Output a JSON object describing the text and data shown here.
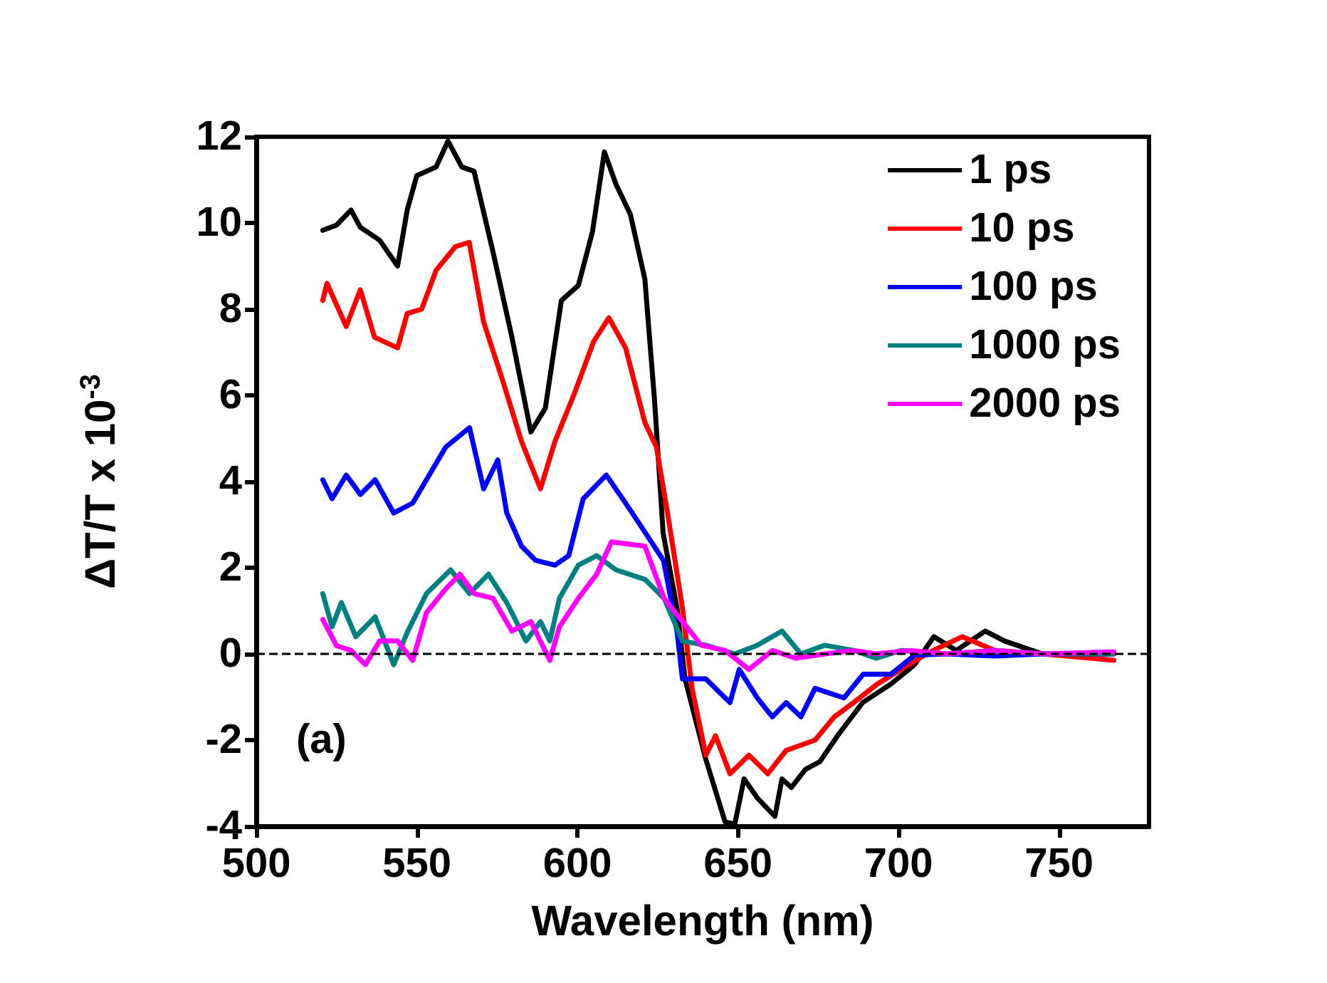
{
  "chart_data": {
    "type": "line",
    "xlabel": "Wavelength (nm)",
    "ylabel": "ΔT/T x 10$^{-3}$",
    "annotations": [
      "(a)"
    ],
    "xlim": [
      500,
      778
    ],
    "xticks": [
      500,
      550,
      600,
      650,
      700,
      750
    ],
    "ylim": [
      -4,
      12
    ],
    "yticks": [
      -4,
      -2,
      0,
      2,
      4,
      6,
      8,
      10,
      12
    ],
    "grid": false,
    "legend": "top right",
    "marker": "none",
    "ref_lines": [
      {
        "axis": "y",
        "value": 0,
        "label": null,
        "color": "#000000",
        "line_style": "dashed"
      }
    ],
    "series": [
      {
        "name": "1 ps",
        "color": "#000000",
        "x": [
          520.7,
          525,
          529.5,
          532.4,
          538.4,
          544,
          547,
          550,
          556,
          559.7,
          564,
          567.8,
          573.8,
          579.6,
          585.5,
          590,
          595,
          600.3,
          604.7,
          608.4,
          612,
          616.5,
          621,
          624,
          626.7,
          631,
          633.5,
          640,
          646,
          649,
          651.9,
          656,
          661.5,
          663.7,
          666.6,
          671,
          675.5,
          681,
          688.8,
          697.6,
          705,
          711,
          718,
          727,
          733,
          744.8,
          756.6,
          767
        ],
        "values": [
          9.83,
          9.95,
          10.3,
          9.9,
          9.6,
          9.0,
          10.3,
          11.1,
          11.3,
          11.9,
          11.3,
          11.2,
          9.3,
          7.35,
          5.15,
          5.7,
          8.2,
          8.55,
          9.8,
          11.65,
          10.9,
          10.2,
          8.7,
          5.9,
          2.8,
          1.07,
          -0.58,
          -2.45,
          -3.9,
          -3.95,
          -2.9,
          -3.34,
          -3.77,
          -2.9,
          -3.1,
          -2.68,
          -2.5,
          -1.9,
          -1.13,
          -0.7,
          -0.25,
          0.4,
          0.08,
          0.53,
          0.3,
          0,
          0,
          0
        ]
      },
      {
        "name": "10 ps",
        "color": "#ff0000",
        "x": [
          520.7,
          522,
          528,
          532.4,
          536.8,
          544,
          547,
          551.5,
          556,
          562,
          566.3,
          570.8,
          576.7,
          582.6,
          588.5,
          593,
          599,
          605,
          609.8,
          615,
          621,
          624.6,
          628,
          632.7,
          635.7,
          640,
          643,
          647.5,
          653.4,
          659.3,
          665,
          674,
          680,
          686,
          693.4,
          700.8,
          709.6,
          719.8,
          730,
          745,
          760,
          767
        ],
        "values": [
          8.2,
          8.6,
          7.6,
          8.45,
          7.35,
          7.1,
          7.9,
          8.0,
          8.9,
          9.45,
          9.55,
          7.7,
          6.35,
          4.93,
          3.83,
          4.93,
          6.03,
          7.24,
          7.8,
          7.1,
          5.37,
          4.8,
          3.3,
          1.07,
          -0.8,
          -2.35,
          -1.9,
          -2.78,
          -2.35,
          -2.78,
          -2.24,
          -2.0,
          -1.46,
          -1.13,
          -0.7,
          -0.36,
          0.04,
          0.4,
          0.08,
          0,
          -0.1,
          -0.15
        ]
      },
      {
        "name": "100 ps",
        "color": "#0000ff",
        "x": [
          520.7,
          523.6,
          528,
          532.4,
          537,
          542.8,
          548.7,
          553,
          559,
          566.4,
          570.8,
          575.2,
          578,
          582.6,
          587,
          593,
          597.3,
          601.8,
          609,
          615,
          620,
          626.8,
          631,
          632.7,
          640,
          647.5,
          650.4,
          656,
          660.7,
          665,
          669.6,
          674,
          683,
          689,
          697.6,
          705,
          715,
          730,
          745,
          767
        ],
        "values": [
          4.04,
          3.6,
          4.15,
          3.7,
          4.04,
          3.27,
          3.5,
          4.04,
          4.8,
          5.25,
          3.83,
          4.5,
          3.27,
          2.5,
          2.17,
          2.06,
          2.28,
          3.6,
          4.15,
          3.5,
          2.94,
          2.17,
          0.53,
          -0.58,
          -0.58,
          -1.13,
          -0.36,
          -1.02,
          -1.46,
          -1.13,
          -1.46,
          -0.8,
          -1.02,
          -0.47,
          -0.47,
          -0.03,
          0,
          -0.05,
          0,
          0
        ]
      },
      {
        "name": "1000 ps",
        "color": "#008080",
        "x": [
          520.7,
          523.6,
          526.5,
          531,
          537,
          542.8,
          547.2,
          553,
          560.5,
          566.4,
          572.3,
          578,
          584,
          588.5,
          591.4,
          594.4,
          600.3,
          606,
          612,
          621,
          627,
          632.7,
          640,
          649,
          656,
          663.7,
          669.6,
          677,
          686,
          693,
          700.8,
          715,
          730,
          745,
          767
        ],
        "values": [
          1.4,
          0.63,
          1.19,
          0.4,
          0.86,
          -0.25,
          0.53,
          1.4,
          1.95,
          1.4,
          1.85,
          1.19,
          0.3,
          0.75,
          0.3,
          1.29,
          2.06,
          2.28,
          1.95,
          1.73,
          1.29,
          0.3,
          0.2,
          0,
          0.2,
          0.53,
          0,
          0.2,
          0.08,
          -0.1,
          0.08,
          0,
          0.08,
          0,
          0
        ]
      },
      {
        "name": "2000 ps",
        "color": "#ff00ff",
        "x": [
          520.7,
          525,
          529.5,
          534,
          538.4,
          544,
          548.7,
          553,
          559,
          563.4,
          567.8,
          573.7,
          579.6,
          585.5,
          591.4,
          594.4,
          600.3,
          606,
          610.6,
          621,
          627,
          632.7,
          638.6,
          646,
          653.4,
          660.7,
          668,
          677,
          686,
          693,
          703.5,
          715,
          730,
          745,
          767
        ],
        "values": [
          0.8,
          0.19,
          0.08,
          -0.25,
          0.3,
          0.3,
          -0.15,
          0.96,
          1.51,
          1.85,
          1.4,
          1.29,
          0.53,
          0.75,
          -0.15,
          0.63,
          1.29,
          1.85,
          2.6,
          2.5,
          1.29,
          0.75,
          0.2,
          0.08,
          -0.36,
          0.08,
          -0.1,
          0,
          0.08,
          0,
          0.08,
          0,
          0.08,
          0,
          0.05
        ]
      }
    ]
  }
}
